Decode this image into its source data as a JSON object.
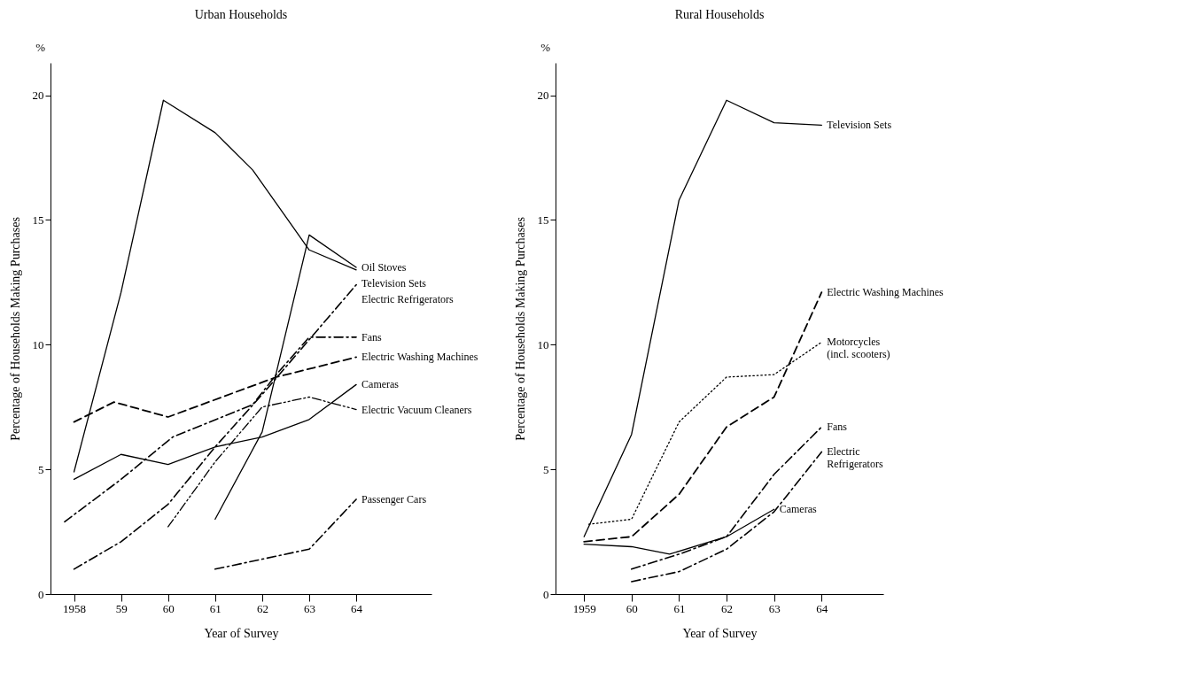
{
  "chart_data": [
    {
      "type": "line",
      "title": "Urban Households",
      "xlabel": "Year of Survey",
      "ylabel": "Percentage of Households Making Purchases",
      "annotations": [
        "%"
      ],
      "xlim": [
        1957.5,
        1965.6
      ],
      "xticks": [
        {
          "value": 1958,
          "label": "1958"
        },
        {
          "value": 1959,
          "label": "59"
        },
        {
          "value": 1960,
          "label": "60"
        },
        {
          "value": 1961,
          "label": "61"
        },
        {
          "value": 1962,
          "label": "62"
        },
        {
          "value": 1963,
          "label": "63"
        },
        {
          "value": 1964,
          "label": "64"
        }
      ],
      "ylim": [
        0,
        21.3
      ],
      "yticks": [
        0,
        5,
        10,
        15,
        20
      ],
      "series": [
        {
          "name": "Television Sets",
          "color": "#000000",
          "line_style": "solid",
          "x": [
            1958,
            1959,
            1959.9,
            1961,
            1961.8,
            1963,
            1964
          ],
          "values": [
            4.9,
            12.1,
            19.8,
            18.5,
            17.0,
            13.8,
            13.0
          ]
        },
        {
          "name": "Oil Stoves",
          "color": "#000000",
          "line_style": "solid",
          "x": [
            1961,
            1962,
            1963,
            1964
          ],
          "values": [
            3.0,
            6.5,
            14.4,
            13.1
          ]
        },
        {
          "name": "Electric Refrigerators",
          "color": "#000000",
          "line_style": "dashdot",
          "x": [
            1958,
            1959,
            1960,
            1961,
            1962,
            1963,
            1964
          ],
          "values": [
            1.0,
            2.1,
            3.6,
            5.9,
            8.0,
            10.2,
            12.4
          ]
        },
        {
          "name": "Fans",
          "color": "#000000",
          "line_style": "dashdot",
          "x": [
            1957.8,
            1959,
            1960.1,
            1961.8,
            1962.3,
            1963,
            1964
          ],
          "values": [
            2.9,
            4.6,
            6.3,
            7.6,
            8.8,
            10.3,
            10.3
          ]
        },
        {
          "name": "Electric Washing Machines",
          "color": "#000000",
          "line_style": "dashed",
          "x": [
            1958,
            1958.85,
            1960,
            1962.3,
            1964
          ],
          "values": [
            6.9,
            7.7,
            7.1,
            8.7,
            9.5
          ]
        },
        {
          "name": "Cameras",
          "color": "#000000",
          "line_style": "solid",
          "x": [
            1958,
            1959,
            1960,
            1961,
            1962,
            1963,
            1964
          ],
          "values": [
            4.6,
            5.6,
            5.2,
            5.9,
            6.3,
            7.0,
            8.4
          ]
        },
        {
          "name": "Electric Vacuum Cleaners",
          "color": "#000000",
          "line_style": "dashdotdot",
          "x": [
            1960,
            1961,
            1962,
            1963,
            1964
          ],
          "values": [
            2.7,
            5.3,
            7.5,
            7.9,
            7.4
          ]
        },
        {
          "name": "Passenger Cars",
          "color": "#000000",
          "line_style": "dashdot",
          "x": [
            1961,
            1962,
            1963,
            1964
          ],
          "values": [
            1.0,
            1.4,
            1.8,
            3.8
          ]
        }
      ]
    },
    {
      "type": "line",
      "title": "Rural Households",
      "xlabel": "Year of Survey",
      "ylabel": "Percentage of Households Making Purchases",
      "annotations": [
        "%"
      ],
      "xlim": [
        1958.4,
        1965.3
      ],
      "xticks": [
        {
          "value": 1959,
          "label": "1959"
        },
        {
          "value": 1960,
          "label": "60"
        },
        {
          "value": 1961,
          "label": "61"
        },
        {
          "value": 1962,
          "label": "62"
        },
        {
          "value": 1963,
          "label": "63"
        },
        {
          "value": 1964,
          "label": "64"
        }
      ],
      "ylim": [
        0,
        21.3
      ],
      "yticks": [
        0,
        5,
        10,
        15,
        20
      ],
      "series": [
        {
          "name": "Television Sets",
          "color": "#000000",
          "line_style": "solid",
          "x": [
            1959,
            1960,
            1961,
            1962,
            1963,
            1964
          ],
          "values": [
            2.3,
            6.4,
            15.8,
            19.8,
            18.9,
            18.8
          ]
        },
        {
          "name": "Electric Washing Machines",
          "color": "#000000",
          "line_style": "dashed",
          "x": [
            1959,
            1960,
            1961,
            1962,
            1963,
            1964
          ],
          "values": [
            2.1,
            2.3,
            4.0,
            6.7,
            7.9,
            12.1
          ]
        },
        {
          "name": "Motorcycles\n(incl. scooters)",
          "color": "#000000",
          "line_style": "dotted",
          "x": [
            1959.1,
            1960,
            1961,
            1962,
            1963,
            1964
          ],
          "values": [
            2.8,
            3.0,
            6.9,
            8.7,
            8.8,
            10.1
          ]
        },
        {
          "name": "Fans",
          "color": "#000000",
          "line_style": "dashdot",
          "x": [
            1960,
            1961,
            1962,
            1963,
            1964
          ],
          "values": [
            1.0,
            1.6,
            2.3,
            4.8,
            6.7
          ]
        },
        {
          "name": "Electric\nRefrigerators",
          "color": "#000000",
          "line_style": "dashdot",
          "x": [
            1960,
            1961,
            1962,
            1963,
            1964
          ],
          "values": [
            0.5,
            0.9,
            1.8,
            3.3,
            5.7
          ]
        },
        {
          "name": "Cameras",
          "color": "#000000",
          "line_style": "solid",
          "x": [
            1959,
            1960,
            1960.8,
            1962,
            1963
          ],
          "values": [
            2.0,
            1.9,
            1.6,
            2.3,
            3.4
          ]
        }
      ]
    }
  ]
}
